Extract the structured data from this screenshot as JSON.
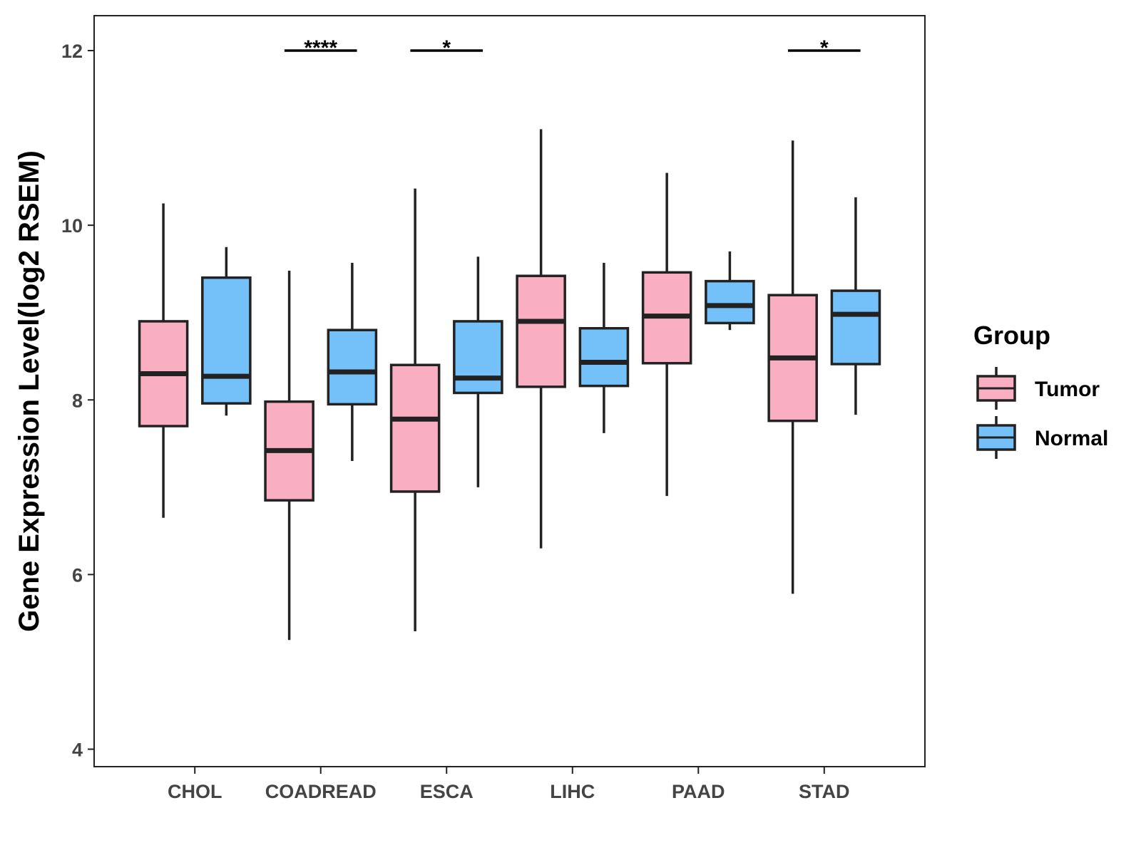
{
  "chart_data": {
    "type": "boxplot",
    "title": "",
    "xlabel": "",
    "ylabel": "Gene Expression Level(log2 RSEM)",
    "ylim": [
      3.8,
      12.4
    ],
    "yticks": [
      4,
      6,
      8,
      10,
      12
    ],
    "categories": [
      "CHOL",
      "COADREAD",
      "ESCA",
      "LIHC",
      "PAAD",
      "STAD"
    ],
    "legend": {
      "title": "Group",
      "position": "right",
      "items": [
        {
          "name": "Tumor",
          "color": "#F9AFC1"
        },
        {
          "name": "Normal",
          "color": "#74C0F8"
        }
      ]
    },
    "series": [
      {
        "name": "Tumor",
        "color": "#F9AFC1",
        "boxes": [
          {
            "min": 6.65,
            "q1": 7.7,
            "median": 8.3,
            "q3": 8.9,
            "max": 10.25
          },
          {
            "min": 5.25,
            "q1": 6.85,
            "median": 7.42,
            "q3": 7.98,
            "max": 9.48
          },
          {
            "min": 5.35,
            "q1": 6.95,
            "median": 7.78,
            "q3": 8.4,
            "max": 10.42
          },
          {
            "min": 6.3,
            "q1": 8.15,
            "median": 8.9,
            "q3": 9.42,
            "max": 11.1
          },
          {
            "min": 6.9,
            "q1": 8.42,
            "median": 8.96,
            "q3": 9.46,
            "max": 10.6
          },
          {
            "min": 5.78,
            "q1": 7.76,
            "median": 8.48,
            "q3": 9.2,
            "max": 10.97
          }
        ]
      },
      {
        "name": "Normal",
        "color": "#74C0F8",
        "boxes": [
          {
            "min": 7.82,
            "q1": 7.96,
            "median": 8.27,
            "q3": 9.4,
            "max": 9.75
          },
          {
            "min": 7.3,
            "q1": 7.95,
            "median": 8.32,
            "q3": 8.8,
            "max": 9.57
          },
          {
            "min": 7.0,
            "q1": 8.08,
            "median": 8.25,
            "q3": 8.9,
            "max": 9.64
          },
          {
            "min": 7.62,
            "q1": 8.16,
            "median": 8.43,
            "q3": 8.82,
            "max": 9.57
          },
          {
            "min": 8.8,
            "q1": 8.88,
            "median": 9.08,
            "q3": 9.36,
            "max": 9.7
          },
          {
            "min": 7.83,
            "q1": 8.41,
            "median": 8.98,
            "q3": 9.25,
            "max": 10.32
          }
        ]
      }
    ],
    "significance": [
      {
        "category": "COADREAD",
        "label": "****"
      },
      {
        "category": "ESCA",
        "label": "*"
      },
      {
        "category": "STAD",
        "label": "*"
      }
    ]
  }
}
